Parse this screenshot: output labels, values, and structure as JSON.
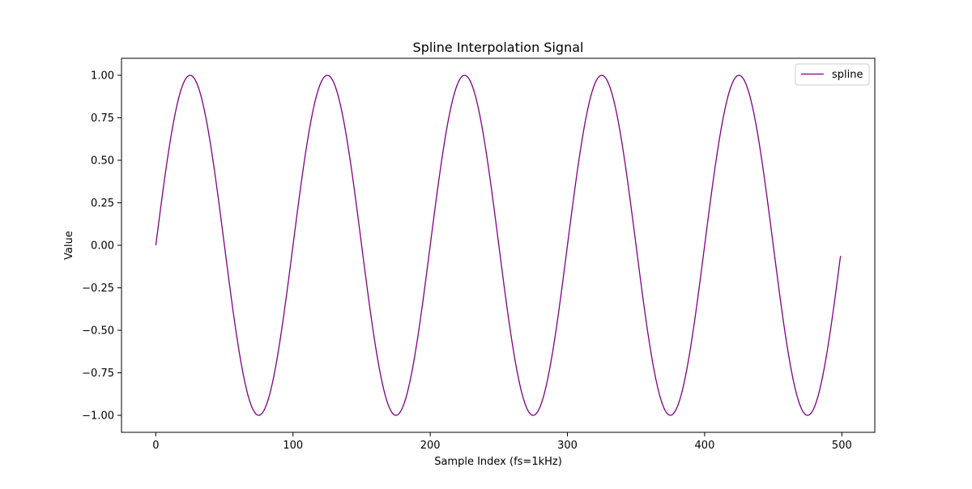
{
  "chart_data": {
    "type": "line",
    "title": "Spline Interpolation Signal",
    "xlabel": "Sample Index (fs=1kHz)",
    "ylabel": "Value",
    "xlim": [
      -25,
      524
    ],
    "ylim": [
      -1.1,
      1.1
    ],
    "x_ticks": [
      0,
      100,
      200,
      300,
      400,
      500
    ],
    "x_tick_labels": [
      "0",
      "100",
      "200",
      "300",
      "400",
      "500"
    ],
    "y_ticks": [
      1.0,
      0.75,
      0.5,
      0.25,
      0.0,
      -0.25,
      -0.5,
      -0.75,
      -1.0
    ],
    "y_tick_labels": [
      "1.00",
      "0.75",
      "0.50",
      "0.25",
      "0.00",
      "−0.25",
      "−0.50",
      "−0.75",
      "−1.00"
    ],
    "grid": false,
    "legend_position": "top-right",
    "series": [
      {
        "name": "spline",
        "color": "#800080",
        "x_start": 0,
        "x_end": 499,
        "x_step": 1,
        "y_formula": "sin(2*pi*10*n/1000)",
        "signal_frequency_hz": 10,
        "sample_rate_hz": 1000
      }
    ]
  }
}
